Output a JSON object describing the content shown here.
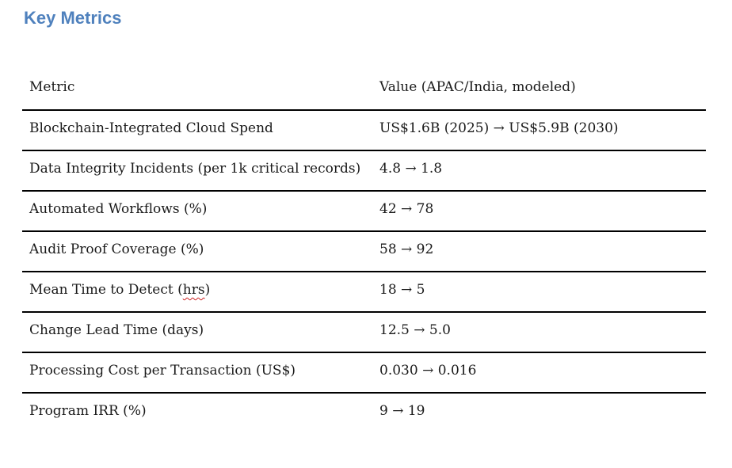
{
  "title": "Key Metrics",
  "colors": {
    "title": "#4F81BD",
    "spellcheck_underline": "#cc2222",
    "text": "#1a1a1a",
    "rule": "#000000"
  },
  "table": {
    "headers": {
      "metric": "Metric",
      "value": "Value (APAC/India, modeled)"
    },
    "rows": [
      {
        "metric": "Blockchain-Integrated Cloud Spend",
        "value": "US$1.6B (2025) → US$5.9B (2030)"
      },
      {
        "metric": "Data Integrity Incidents (per 1k critical records)",
        "value": "4.8 → 1.8"
      },
      {
        "metric": "Automated Workflows (%)",
        "value": "42 → 78"
      },
      {
        "metric": "Audit Proof Coverage (%)",
        "value": "58 → 92"
      },
      {
        "metric_prefix": "Mean Time to Detect (",
        "spellcheck_word": "hrs",
        "metric_suffix": ")",
        "value": "18 → 5"
      },
      {
        "metric": "Change Lead Time (days)",
        "value": "12.5 → 5.0"
      },
      {
        "metric": "Processing Cost per Transaction (US$)",
        "value": "0.030 → 0.016"
      },
      {
        "metric": "Program IRR (%)",
        "value": "9 → 19"
      }
    ]
  }
}
